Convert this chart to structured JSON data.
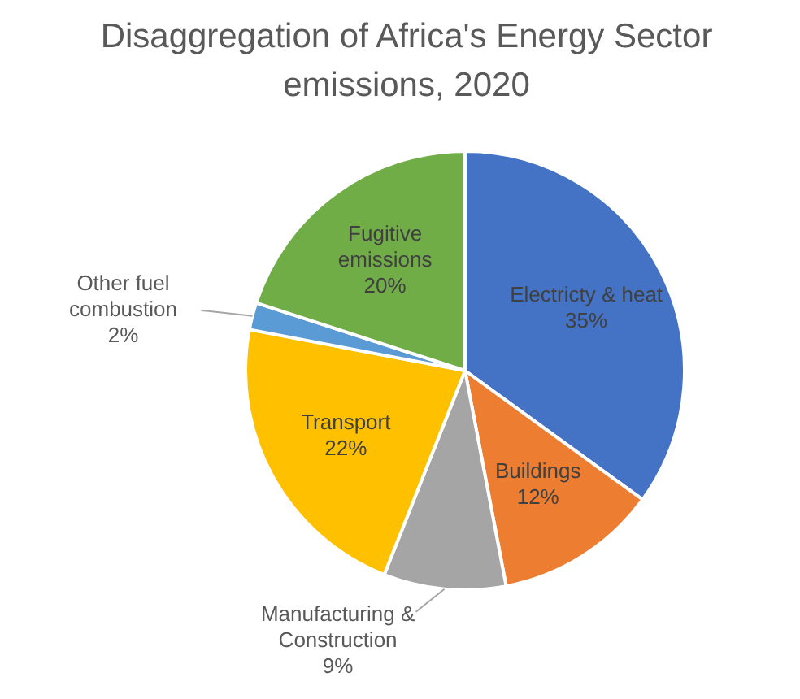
{
  "chart_data": {
    "type": "pie",
    "title": "Disaggregation of Africa's Energy Sector emissions, 2020",
    "categories": [
      "Electricty & heat",
      "Buildings",
      "Manufacturing & Construction",
      "Transport",
      "Other fuel combustion",
      "Fugitive emissions"
    ],
    "values": [
      35,
      12,
      9,
      22,
      2,
      20
    ],
    "colors": [
      "#4472c4",
      "#ed7d31",
      "#a5a5a5",
      "#ffc000",
      "#5b9bd5",
      "#70ad47"
    ],
    "value_labels": [
      "35%",
      "12%",
      "9%",
      "22%",
      "2%",
      "20%"
    ],
    "legend": false
  }
}
